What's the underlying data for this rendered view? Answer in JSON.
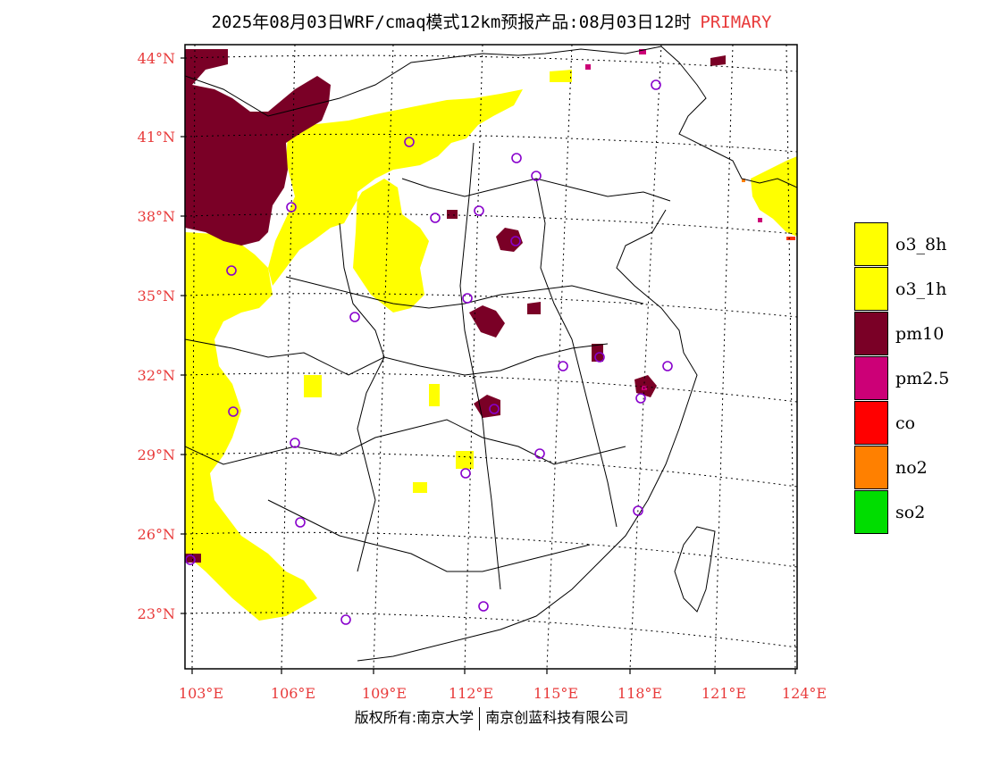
{
  "title": {
    "text": "2025年08月03日WRF/cmaq模式12km预报产品:08月03日12时",
    "tag": "PRIMARY"
  },
  "map": {
    "lat_labels": [
      "44°N",
      "41°N",
      "38°N",
      "35°N",
      "32°N",
      "29°N",
      "26°N",
      "23°N"
    ],
    "lon_labels": [
      "103°E",
      "106°E",
      "109°E",
      "112°E",
      "115°E",
      "118°E",
      "121°E",
      "124°E"
    ],
    "colors": {
      "o3_8h": "#ffff00",
      "o3_1h": "#ffff00",
      "pm10": "#7a0026",
      "pm2_5": "#cc0077",
      "co": "#ff0000",
      "no2": "#ff8000",
      "so2": "#00dd00",
      "station": "#8800cc"
    }
  },
  "legend": [
    {
      "label": "o3_8h",
      "color": "#ffff00"
    },
    {
      "label": "o3_1h",
      "color": "#ffff00"
    },
    {
      "label": "pm10",
      "color": "#7a0026"
    },
    {
      "label": "pm2.5",
      "color": "#cc0077"
    },
    {
      "label": "co",
      "color": "#ff0000"
    },
    {
      "label": "no2",
      "color": "#ff8000"
    },
    {
      "label": "so2",
      "color": "#00dd00"
    }
  ],
  "copyright": {
    "left": "版权所有:南京大学",
    "right": "南京创蓝科技有限公司"
  }
}
